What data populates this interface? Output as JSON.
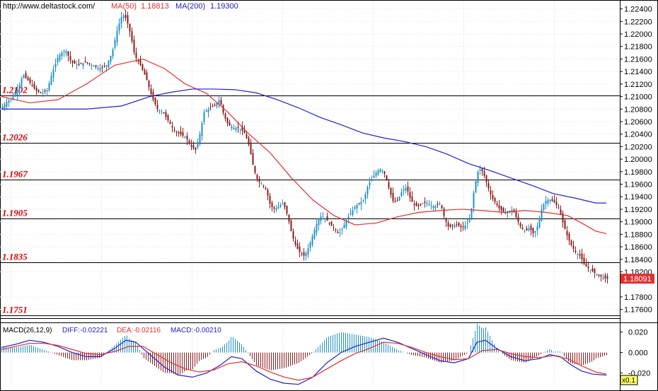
{
  "header": {
    "url": "http://www.deltastock.com/",
    "ma50_label": "MA(50)",
    "ma50_value": "1.18813",
    "ma200_label": "MA(200)",
    "ma200_value": "1.19300"
  },
  "macd_header": {
    "title": "MACD(26,12,9)",
    "diff": "DIFF:-0.02221",
    "dea": "DEA:-0.02116",
    "macd": "MACD:-0.00210"
  },
  "zoom_label": "x0.1",
  "colors": {
    "up_candle": "#1e90c8",
    "down_candle": "#8b1a1a",
    "ma50": "#e03030",
    "ma200": "#2020d0",
    "level_label": "#e00000",
    "current_price_box": "#e03030"
  },
  "chart_data": {
    "type": "line",
    "price_axis": {
      "ylim": [
        1.1746,
        1.2252
      ],
      "ticks": [
        "1.22400",
        "1.22200",
        "1.22000",
        "1.21800",
        "1.21600",
        "1.21400",
        "1.21200",
        "1.21000",
        "1.20800",
        "1.20600",
        "1.20400",
        "1.20200",
        "1.20000",
        "1.19800",
        "1.19600",
        "1.19400",
        "1.19200",
        "1.19000",
        "1.18800",
        "1.18600",
        "1.18400",
        "1.18200",
        "1.17800",
        "1.17600"
      ],
      "current_price": "1.18091"
    },
    "levels": [
      "1.2102",
      "1.2026",
      "1.1967",
      "1.1905",
      "1.1835",
      "1.1751"
    ],
    "price_path": [
      [
        0,
        1.208
      ],
      [
        8,
        1.209
      ],
      [
        18,
        1.21
      ],
      [
        26,
        1.2115
      ],
      [
        32,
        1.2135
      ],
      [
        40,
        1.2125
      ],
      [
        50,
        1.211
      ],
      [
        58,
        1.2105
      ],
      [
        66,
        1.211
      ],
      [
        74,
        1.214
      ],
      [
        82,
        1.2165
      ],
      [
        92,
        1.2175
      ],
      [
        100,
        1.2155
      ],
      [
        110,
        1.215
      ],
      [
        120,
        1.2155
      ],
      [
        130,
        1.215
      ],
      [
        140,
        1.2145
      ],
      [
        150,
        1.215
      ],
      [
        158,
        1.217
      ],
      [
        166,
        1.221
      ],
      [
        172,
        1.223
      ],
      [
        178,
        1.2225
      ],
      [
        184,
        1.22
      ],
      [
        190,
        1.2165
      ],
      [
        198,
        1.215
      ],
      [
        206,
        1.213
      ],
      [
        214,
        1.21
      ],
      [
        222,
        1.208
      ],
      [
        230,
        1.2075
      ],
      [
        238,
        1.206
      ],
      [
        246,
        1.2045
      ],
      [
        254,
        1.204
      ],
      [
        262,
        1.2035
      ],
      [
        270,
        1.202
      ],
      [
        276,
        1.2015
      ],
      [
        282,
        1.204
      ],
      [
        288,
        1.2075
      ],
      [
        294,
        1.208
      ],
      [
        302,
        1.2085
      ],
      [
        310,
        1.2095
      ],
      [
        316,
        1.207
      ],
      [
        322,
        1.2055
      ],
      [
        330,
        1.205
      ],
      [
        338,
        1.205
      ],
      [
        346,
        1.204
      ],
      [
        352,
        1.202
      ],
      [
        358,
        1.1985
      ],
      [
        364,
        1.1965
      ],
      [
        370,
        1.196
      ],
      [
        376,
        1.195
      ],
      [
        382,
        1.1925
      ],
      [
        388,
        1.192
      ],
      [
        394,
        1.1925
      ],
      [
        400,
        1.193
      ],
      [
        406,
        1.191
      ],
      [
        412,
        1.188
      ],
      [
        418,
        1.186
      ],
      [
        424,
        1.185
      ],
      [
        430,
        1.1845
      ],
      [
        436,
        1.186
      ],
      [
        442,
        1.188
      ],
      [
        448,
        1.19
      ],
      [
        454,
        1.191
      ],
      [
        460,
        1.1905
      ],
      [
        466,
        1.1895
      ],
      [
        472,
        1.189
      ],
      [
        478,
        1.188
      ],
      [
        484,
        1.189
      ],
      [
        490,
        1.1905
      ],
      [
        496,
        1.1915
      ],
      [
        502,
        1.1925
      ],
      [
        508,
        1.193
      ],
      [
        514,
        1.1935
      ],
      [
        520,
        1.196
      ],
      [
        526,
        1.197
      ],
      [
        532,
        1.198
      ],
      [
        538,
        1.1985
      ],
      [
        544,
        1.1975
      ],
      [
        550,
        1.195
      ],
      [
        556,
        1.193
      ],
      [
        562,
        1.1935
      ],
      [
        568,
        1.195
      ],
      [
        574,
        1.1955
      ],
      [
        580,
        1.1935
      ],
      [
        586,
        1.1925
      ],
      [
        592,
        1.1925
      ],
      [
        598,
        1.193
      ],
      [
        604,
        1.193
      ],
      [
        610,
        1.1925
      ],
      [
        616,
        1.1925
      ],
      [
        622,
        1.193
      ],
      [
        628,
        1.1905
      ],
      [
        634,
        1.189
      ],
      [
        640,
        1.1895
      ],
      [
        646,
        1.1895
      ],
      [
        652,
        1.189
      ],
      [
        658,
        1.1895
      ],
      [
        664,
        1.1905
      ],
      [
        670,
        1.1955
      ],
      [
        676,
        1.1985
      ],
      [
        682,
        1.198
      ],
      [
        688,
        1.196
      ],
      [
        694,
        1.194
      ],
      [
        700,
        1.193
      ],
      [
        706,
        1.192
      ],
      [
        712,
        1.1915
      ],
      [
        718,
        1.1915
      ],
      [
        724,
        1.192
      ],
      [
        730,
        1.1905
      ],
      [
        736,
        1.189
      ],
      [
        742,
        1.1885
      ],
      [
        748,
        1.189
      ],
      [
        754,
        1.188
      ],
      [
        760,
        1.1895
      ],
      [
        766,
        1.1925
      ],
      [
        772,
        1.1935
      ],
      [
        778,
        1.1935
      ],
      [
        784,
        1.193
      ],
      [
        790,
        1.192
      ],
      [
        796,
        1.1895
      ],
      [
        802,
        1.1875
      ],
      [
        808,
        1.186
      ],
      [
        814,
        1.185
      ],
      [
        820,
        1.1845
      ],
      [
        826,
        1.183
      ],
      [
        832,
        1.1825
      ],
      [
        838,
        1.182
      ],
      [
        844,
        1.1815
      ],
      [
        850,
        1.1812
      ],
      [
        856,
        1.1809
      ]
    ],
    "ma50": [
      [
        0,
        1.21
      ],
      [
        40,
        1.209
      ],
      [
        80,
        1.2095
      ],
      [
        120,
        1.212
      ],
      [
        160,
        1.215
      ],
      [
        200,
        1.216
      ],
      [
        230,
        1.2145
      ],
      [
        260,
        1.212
      ],
      [
        290,
        1.2105
      ],
      [
        320,
        1.2075
      ],
      [
        350,
        1.204
      ],
      [
        380,
        1.201
      ],
      [
        410,
        1.197
      ],
      [
        440,
        1.1935
      ],
      [
        470,
        1.191
      ],
      [
        500,
        1.1895
      ],
      [
        530,
        1.1898
      ],
      [
        560,
        1.1908
      ],
      [
        590,
        1.1915
      ],
      [
        620,
        1.1918
      ],
      [
        650,
        1.192
      ],
      [
        680,
        1.1918
      ],
      [
        710,
        1.1915
      ],
      [
        740,
        1.1918
      ],
      [
        770,
        1.1915
      ],
      [
        800,
        1.191
      ],
      [
        820,
        1.1898
      ],
      [
        840,
        1.1885
      ],
      [
        855,
        1.1881
      ]
    ],
    "ma200": [
      [
        0,
        1.208
      ],
      [
        60,
        1.208
      ],
      [
        120,
        1.208
      ],
      [
        170,
        1.2085
      ],
      [
        210,
        1.21
      ],
      [
        240,
        1.2107
      ],
      [
        270,
        1.2112
      ],
      [
        300,
        1.2112
      ],
      [
        330,
        1.2111
      ],
      [
        360,
        1.2106
      ],
      [
        390,
        1.2095
      ],
      [
        420,
        1.2082
      ],
      [
        450,
        1.2067
      ],
      [
        480,
        1.2055
      ],
      [
        510,
        1.2042
      ],
      [
        540,
        1.2034
      ],
      [
        570,
        1.2028
      ],
      [
        600,
        1.202
      ],
      [
        630,
        1.2008
      ],
      [
        660,
        1.1993
      ],
      [
        690,
        1.1982
      ],
      [
        720,
        1.197
      ],
      [
        750,
        1.1958
      ],
      [
        780,
        1.1945
      ],
      [
        810,
        1.1938
      ],
      [
        840,
        1.193
      ],
      [
        855,
        1.193
      ]
    ],
    "macd": {
      "ylim": [
        -0.032,
        0.028
      ],
      "ticks": [
        "0.020",
        "0.000",
        "-0.020"
      ],
      "diff_path": [
        [
          0,
          0.005
        ],
        [
          20,
          0.008
        ],
        [
          40,
          0.012
        ],
        [
          60,
          0.01
        ],
        [
          80,
          0.006
        ],
        [
          100,
          0.0
        ],
        [
          120,
          -0.004
        ],
        [
          140,
          -0.004
        ],
        [
          160,
          0.004
        ],
        [
          176,
          0.012
        ],
        [
          190,
          0.01
        ],
        [
          210,
          -0.002
        ],
        [
          230,
          -0.014
        ],
        [
          250,
          -0.022
        ],
        [
          270,
          -0.024
        ],
        [
          290,
          -0.02
        ],
        [
          310,
          -0.012
        ],
        [
          325,
          -0.004
        ],
        [
          340,
          -0.006
        ],
        [
          360,
          -0.018
        ],
        [
          380,
          -0.026
        ],
        [
          400,
          -0.03
        ],
        [
          420,
          -0.031
        ],
        [
          440,
          -0.024
        ],
        [
          460,
          -0.01
        ],
        [
          480,
          0.0
        ],
        [
          500,
          0.006
        ],
        [
          520,
          0.01
        ],
        [
          540,
          0.014
        ],
        [
          560,
          0.01
        ],
        [
          580,
          0.004
        ],
        [
          600,
          -0.002
        ],
        [
          620,
          -0.008
        ],
        [
          640,
          -0.01
        ],
        [
          660,
          -0.006
        ],
        [
          672,
          0.01
        ],
        [
          684,
          0.012
        ],
        [
          700,
          0.004
        ],
        [
          720,
          -0.004
        ],
        [
          740,
          -0.008
        ],
        [
          760,
          -0.006
        ],
        [
          775,
          -0.002
        ],
        [
          790,
          -0.004
        ],
        [
          805,
          -0.012
        ],
        [
          820,
          -0.018
        ],
        [
          835,
          -0.021
        ],
        [
          855,
          -0.022
        ]
      ],
      "dea_path": [
        [
          0,
          0.003
        ],
        [
          20,
          0.006
        ],
        [
          40,
          0.009
        ],
        [
          60,
          0.009
        ],
        [
          80,
          0.007
        ],
        [
          100,
          0.003
        ],
        [
          120,
          -0.001
        ],
        [
          140,
          -0.002
        ],
        [
          160,
          0.001
        ],
        [
          180,
          0.006
        ],
        [
          200,
          0.006
        ],
        [
          220,
          -0.002
        ],
        [
          240,
          -0.01
        ],
        [
          260,
          -0.016
        ],
        [
          280,
          -0.019
        ],
        [
          300,
          -0.017
        ],
        [
          320,
          -0.011
        ],
        [
          340,
          -0.009
        ],
        [
          360,
          -0.013
        ],
        [
          380,
          -0.019
        ],
        [
          400,
          -0.024
        ],
        [
          420,
          -0.027
        ],
        [
          440,
          -0.024
        ],
        [
          460,
          -0.016
        ],
        [
          480,
          -0.008
        ],
        [
          500,
          -0.001
        ],
        [
          520,
          0.004
        ],
        [
          540,
          0.01
        ],
        [
          560,
          0.009
        ],
        [
          580,
          0.005
        ],
        [
          600,
          0.0
        ],
        [
          620,
          -0.004
        ],
        [
          640,
          -0.007
        ],
        [
          660,
          -0.006
        ],
        [
          680,
          0.002
        ],
        [
          700,
          0.003
        ],
        [
          720,
          -0.001
        ],
        [
          740,
          -0.004
        ],
        [
          760,
          -0.005
        ],
        [
          780,
          -0.003
        ],
        [
          800,
          -0.006
        ],
        [
          820,
          -0.013
        ],
        [
          840,
          -0.019
        ],
        [
          855,
          -0.021
        ]
      ]
    }
  }
}
